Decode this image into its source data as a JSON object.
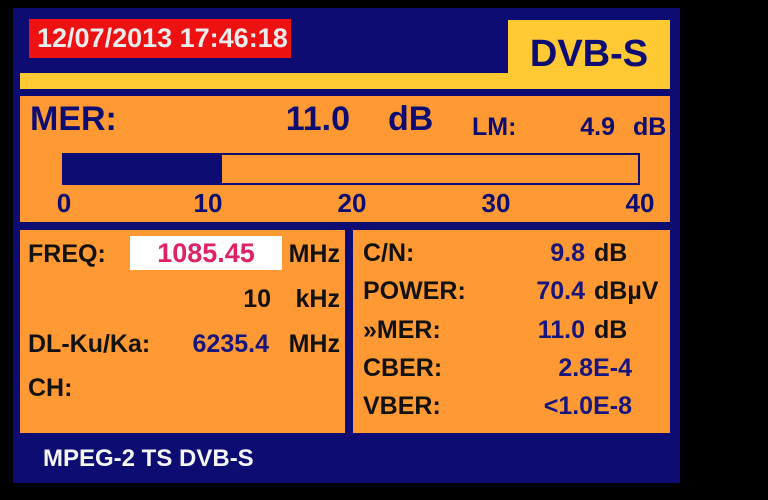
{
  "colors": {
    "background": "#000000",
    "screen_navy": "#0c0c72",
    "panel_orange": "#ff9933",
    "accent_yellow": "#ffc933",
    "alert_red": "#ee1111",
    "value_blue": "#16167e",
    "label_black": "#111111",
    "freq_magenta": "#dd2268",
    "white": "#ffffff"
  },
  "header": {
    "datetime": "12/07/2013 17:46:18",
    "mode": "DVB-S"
  },
  "mer_panel": {
    "label": "MER:",
    "value": "11.0",
    "unit": "dB",
    "lm_label": "LM:",
    "lm_value": "4.9",
    "lm_unit": "dB",
    "bar": {
      "min": 0,
      "max": 40,
      "value": 11.0,
      "fill_percent": 27.5
    },
    "scale_ticks": [
      "0",
      "10",
      "20",
      "30",
      "40"
    ]
  },
  "tuning_panel": {
    "freq_label": "FREQ:",
    "freq_value": "1085.45",
    "freq_unit": "MHz",
    "step_value": "10",
    "step_unit": "kHz",
    "dl_label": "DL-Ku/Ka:",
    "dl_value": "6235.4",
    "dl_unit": "MHz",
    "ch_label": "CH:"
  },
  "measurements": {
    "rows": [
      {
        "label": "C/N:",
        "value": "9.8",
        "unit": "dB"
      },
      {
        "label": "POWER:",
        "value": "70.4",
        "unit": "dBµV"
      },
      {
        "label": "»MER:",
        "value": "11.0",
        "unit": "dB"
      },
      {
        "label": "CBER:",
        "value": "2.8E-4",
        "unit": ""
      },
      {
        "label": "VBER:",
        "value": "<1.0E-8",
        "unit": ""
      }
    ]
  },
  "footer": {
    "status": "MPEG-2 TS DVB-S"
  }
}
